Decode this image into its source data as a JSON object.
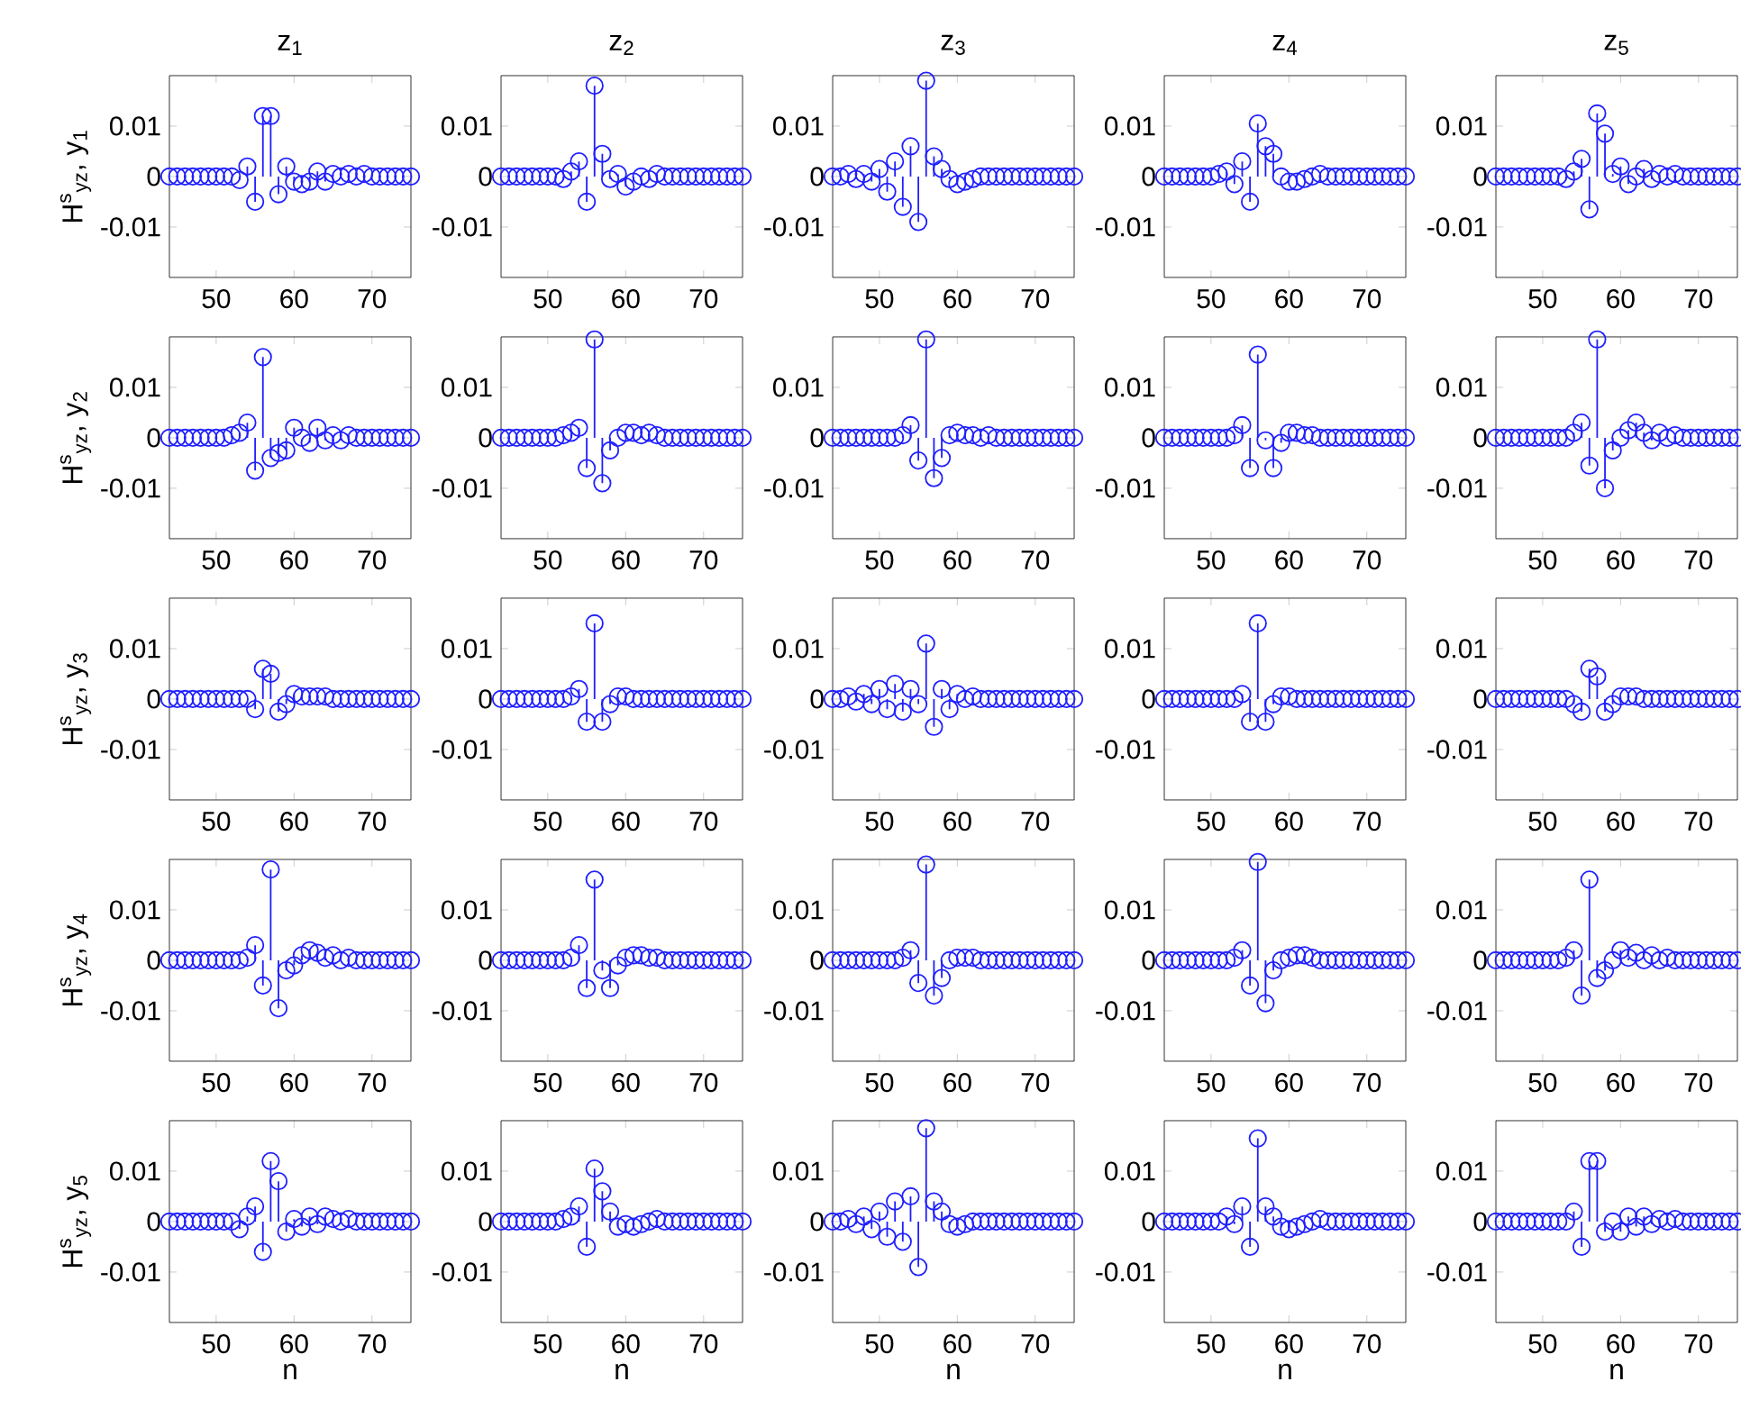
{
  "chart_data": [
    {
      "type": "lollipop",
      "title": "z$_{1}$",
      "ylabel": "H$^{s}$$_{yz}$, y$_{1}$",
      "color": "#1f1fff",
      "marker": "circle",
      "xlim": [
        44,
        75
      ],
      "ylim": [
        -0.02,
        0.02
      ],
      "xticks": [
        50,
        60,
        70
      ],
      "yticks": [
        -0.01,
        0,
        0.01
      ],
      "x": [
        44,
        45,
        46,
        47,
        48,
        49,
        50,
        51,
        52,
        53,
        54,
        55,
        56,
        57,
        58,
        59,
        60,
        61,
        62,
        63,
        64,
        65,
        66,
        67,
        68,
        69,
        70,
        71,
        72,
        73,
        74,
        75
      ],
      "values": [
        0,
        0,
        0,
        0,
        0,
        0,
        0,
        0,
        0,
        -0.0007,
        0.002,
        -0.005,
        0.012,
        0.012,
        -0.0035,
        0.002,
        -0.001,
        -0.0015,
        -0.001,
        0.001,
        -0.001,
        0.0005,
        0,
        0.0005,
        0,
        0.0005,
        0,
        0,
        0,
        0,
        0,
        0
      ]
    },
    {
      "type": "lollipop",
      "title": "z$_{2}$",
      "color": "#1f1fff",
      "marker": "circle",
      "xlim": [
        44,
        75
      ],
      "ylim": [
        -0.02,
        0.02
      ],
      "xticks": [
        50,
        60,
        70
      ],
      "yticks": [
        -0.01,
        0,
        0.01
      ],
      "x": [
        44,
        45,
        46,
        47,
        48,
        49,
        50,
        51,
        52,
        53,
        54,
        55,
        56,
        57,
        58,
        59,
        60,
        61,
        62,
        63,
        64,
        65,
        66,
        67,
        68,
        69,
        70,
        71,
        72,
        73,
        74,
        75
      ],
      "values": [
        0,
        0,
        0,
        0,
        0,
        0,
        0,
        0,
        -0.0005,
        0.001,
        0.003,
        -0.005,
        0.018,
        0.0045,
        -0.0005,
        0.0005,
        -0.002,
        -0.001,
        0,
        -0.0005,
        0.0005,
        0,
        0,
        0,
        0,
        0,
        0,
        0,
        0,
        0,
        0,
        0
      ]
    },
    {
      "type": "lollipop",
      "title": "z$_{3}$",
      "color": "#1f1fff",
      "marker": "circle",
      "xlim": [
        44,
        75
      ],
      "ylim": [
        -0.02,
        0.02
      ],
      "xticks": [
        50,
        60,
        70
      ],
      "yticks": [
        -0.01,
        0,
        0.01
      ],
      "x": [
        44,
        45,
        46,
        47,
        48,
        49,
        50,
        51,
        52,
        53,
        54,
        55,
        56,
        57,
        58,
        59,
        60,
        61,
        62,
        63,
        64,
        65,
        66,
        67,
        68,
        69,
        70,
        71,
        72,
        73,
        74,
        75
      ],
      "values": [
        0,
        0,
        0.0005,
        -0.0005,
        0.0005,
        -0.001,
        0.0015,
        -0.003,
        0.003,
        -0.006,
        0.006,
        -0.009,
        0.019,
        0.004,
        0.0015,
        -0.0005,
        -0.0015,
        -0.001,
        -0.0005,
        0,
        0,
        0,
        0,
        0,
        0,
        0,
        0,
        0,
        0,
        0,
        0,
        0
      ]
    },
    {
      "type": "lollipop",
      "title": "z$_{4}$",
      "color": "#1f1fff",
      "marker": "circle",
      "xlim": [
        44,
        75
      ],
      "ylim": [
        -0.02,
        0.02
      ],
      "xticks": [
        50,
        60,
        70
      ],
      "yticks": [
        -0.01,
        0,
        0.01
      ],
      "x": [
        44,
        45,
        46,
        47,
        48,
        49,
        50,
        51,
        52,
        53,
        54,
        55,
        56,
        57,
        58,
        59,
        60,
        61,
        62,
        63,
        64,
        65,
        66,
        67,
        68,
        69,
        70,
        71,
        72,
        73,
        74,
        75
      ],
      "values": [
        0,
        0,
        0,
        0,
        0,
        0,
        0,
        0.0005,
        0.001,
        -0.0015,
        0.003,
        -0.005,
        0.0105,
        0.006,
        0.0045,
        0,
        -0.001,
        -0.001,
        -0.0005,
        0,
        0.0005,
        0,
        0,
        0,
        0,
        0,
        0,
        0,
        0,
        0,
        0,
        0
      ]
    },
    {
      "type": "lollipop",
      "title": "z$_{5}$",
      "color": "#1f1fff",
      "marker": "circle",
      "xlim": [
        44,
        75
      ],
      "ylim": [
        -0.02,
        0.02
      ],
      "xticks": [
        50,
        60,
        70
      ],
      "yticks": [
        -0.01,
        0,
        0.01
      ],
      "x": [
        44,
        45,
        46,
        47,
        48,
        49,
        50,
        51,
        52,
        53,
        54,
        55,
        56,
        57,
        58,
        59,
        60,
        61,
        62,
        63,
        64,
        65,
        66,
        67,
        68,
        69,
        70,
        71,
        72,
        73,
        74,
        75
      ],
      "values": [
        0,
        0,
        0,
        0,
        0,
        0,
        0,
        0,
        0,
        -0.0005,
        0.001,
        0.0035,
        -0.0065,
        0.0125,
        0.0085,
        0.0005,
        0.002,
        -0.0015,
        0,
        0.0015,
        -0.0005,
        0.0005,
        0,
        0.0005,
        0,
        0,
        0,
        0,
        0,
        0,
        0,
        0
      ]
    },
    {
      "type": "lollipop",
      "ylabel": "H$^{s}$$_{yz}$, y$_{2}$",
      "color": "#1f1fff",
      "marker": "circle",
      "xlim": [
        44,
        75
      ],
      "ylim": [
        -0.02,
        0.02
      ],
      "xticks": [
        50,
        60,
        70
      ],
      "yticks": [
        -0.01,
        0,
        0.01
      ],
      "x": [
        44,
        45,
        46,
        47,
        48,
        49,
        50,
        51,
        52,
        53,
        54,
        55,
        56,
        57,
        58,
        59,
        60,
        61,
        62,
        63,
        64,
        65,
        66,
        67,
        68,
        69,
        70,
        71,
        72,
        73,
        74,
        75
      ],
      "values": [
        0,
        0,
        0,
        0,
        0,
        0,
        0,
        0,
        0.0005,
        0.001,
        0.003,
        -0.0065,
        0.016,
        -0.004,
        -0.003,
        -0.0025,
        0.002,
        0,
        -0.001,
        0.002,
        -0.0005,
        0.0005,
        -0.0005,
        0.0005,
        0,
        0,
        0,
        0,
        0,
        0,
        0,
        0
      ]
    },
    {
      "type": "lollipop",
      "color": "#1f1fff",
      "marker": "circle",
      "xlim": [
        44,
        75
      ],
      "ylim": [
        -0.02,
        0.02
      ],
      "xticks": [
        50,
        60,
        70
      ],
      "yticks": [
        -0.01,
        0,
        0.01
      ],
      "x": [
        44,
        45,
        46,
        47,
        48,
        49,
        50,
        51,
        52,
        53,
        54,
        55,
        56,
        57,
        58,
        59,
        60,
        61,
        62,
        63,
        64,
        65,
        66,
        67,
        68,
        69,
        70,
        71,
        72,
        73,
        74,
        75
      ],
      "values": [
        0,
        0,
        0,
        0,
        0,
        0,
        0,
        0,
        0.0005,
        0.001,
        0.002,
        -0.006,
        0.0195,
        -0.009,
        -0.0025,
        0,
        0.001,
        0.001,
        0.0005,
        0.001,
        0.0005,
        0,
        0,
        0,
        0,
        0,
        0,
        0,
        0,
        0,
        0,
        0
      ]
    },
    {
      "type": "lollipop",
      "color": "#1f1fff",
      "marker": "circle",
      "xlim": [
        44,
        75
      ],
      "ylim": [
        -0.02,
        0.02
      ],
      "xticks": [
        50,
        60,
        70
      ],
      "yticks": [
        -0.01,
        0,
        0.01
      ],
      "x": [
        44,
        45,
        46,
        47,
        48,
        49,
        50,
        51,
        52,
        53,
        54,
        55,
        56,
        57,
        58,
        59,
        60,
        61,
        62,
        63,
        64,
        65,
        66,
        67,
        68,
        69,
        70,
        71,
        72,
        73,
        74,
        75
      ],
      "values": [
        0,
        0,
        0,
        0,
        0,
        0,
        0,
        0,
        0,
        0.0005,
        0.0025,
        -0.0045,
        0.0195,
        -0.008,
        -0.004,
        0.0005,
        0.001,
        0.0005,
        0.0005,
        0,
        0.0005,
        0,
        0,
        0,
        0,
        0,
        0,
        0,
        0,
        0,
        0,
        0
      ]
    },
    {
      "type": "lollipop",
      "color": "#1f1fff",
      "marker": "circle",
      "xlim": [
        44,
        75
      ],
      "ylim": [
        -0.02,
        0.02
      ],
      "xticks": [
        50,
        60,
        70
      ],
      "yticks": [
        -0.01,
        0,
        0.01
      ],
      "x": [
        44,
        45,
        46,
        47,
        48,
        49,
        50,
        51,
        52,
        53,
        54,
        55,
        56,
        57,
        58,
        59,
        60,
        61,
        62,
        63,
        64,
        65,
        66,
        67,
        68,
        69,
        70,
        71,
        72,
        73,
        74,
        75
      ],
      "values": [
        0,
        0,
        0,
        0,
        0,
        0,
        0,
        0,
        0,
        0.0005,
        0.0025,
        -0.006,
        0.0165,
        -0.0005,
        -0.006,
        -0.001,
        0.001,
        0.001,
        0.0005,
        0.0005,
        0,
        0,
        0,
        0,
        0,
        0,
        0,
        0,
        0,
        0,
        0,
        0
      ]
    },
    {
      "type": "lollipop",
      "color": "#1f1fff",
      "marker": "circle",
      "xlim": [
        44,
        75
      ],
      "ylim": [
        -0.02,
        0.02
      ],
      "xticks": [
        50,
        60,
        70
      ],
      "yticks": [
        -0.01,
        0,
        0.01
      ],
      "x": [
        44,
        45,
        46,
        47,
        48,
        49,
        50,
        51,
        52,
        53,
        54,
        55,
        56,
        57,
        58,
        59,
        60,
        61,
        62,
        63,
        64,
        65,
        66,
        67,
        68,
        69,
        70,
        71,
        72,
        73,
        74,
        75
      ],
      "values": [
        0,
        0,
        0,
        0,
        0,
        0,
        0,
        0,
        0,
        0,
        0.001,
        0.003,
        -0.0055,
        0.0195,
        -0.01,
        -0.0025,
        0,
        0.0015,
        0.003,
        0.001,
        -0.0005,
        0.001,
        0,
        0.0005,
        0,
        0,
        0,
        0,
        0,
        0,
        0,
        0
      ]
    },
    {
      "type": "lollipop",
      "ylabel": "H$^{s}$$_{yz}$, y$_{3}$",
      "color": "#1f1fff",
      "marker": "circle",
      "xlim": [
        44,
        75
      ],
      "ylim": [
        -0.02,
        0.02
      ],
      "xticks": [
        50,
        60,
        70
      ],
      "yticks": [
        -0.01,
        0,
        0.01
      ],
      "x": [
        44,
        45,
        46,
        47,
        48,
        49,
        50,
        51,
        52,
        53,
        54,
        55,
        56,
        57,
        58,
        59,
        60,
        61,
        62,
        63,
        64,
        65,
        66,
        67,
        68,
        69,
        70,
        71,
        72,
        73,
        74,
        75
      ],
      "values": [
        0,
        0,
        0,
        0,
        0,
        0,
        0,
        0,
        0,
        0,
        0,
        -0.002,
        0.006,
        0.005,
        -0.0025,
        -0.001,
        0.001,
        0.0005,
        0.0005,
        0.0005,
        0.0005,
        0,
        0,
        0,
        0,
        0,
        0,
        0,
        0,
        0,
        0,
        0
      ]
    },
    {
      "type": "lollipop",
      "color": "#1f1fff",
      "marker": "circle",
      "xlim": [
        44,
        75
      ],
      "ylim": [
        -0.02,
        0.02
      ],
      "xticks": [
        50,
        60,
        70
      ],
      "yticks": [
        -0.01,
        0,
        0.01
      ],
      "x": [
        44,
        45,
        46,
        47,
        48,
        49,
        50,
        51,
        52,
        53,
        54,
        55,
        56,
        57,
        58,
        59,
        60,
        61,
        62,
        63,
        64,
        65,
        66,
        67,
        68,
        69,
        70,
        71,
        72,
        73,
        74,
        75
      ],
      "values": [
        0,
        0,
        0,
        0,
        0,
        0,
        0,
        0,
        0,
        0.0005,
        0.002,
        -0.0045,
        0.015,
        -0.0045,
        -0.001,
        0.0005,
        0.0005,
        0,
        0,
        0,
        0,
        0,
        0,
        0,
        0,
        0,
        0,
        0,
        0,
        0,
        0,
        0
      ]
    },
    {
      "type": "lollipop",
      "color": "#1f1fff",
      "marker": "circle",
      "xlim": [
        44,
        75
      ],
      "ylim": [
        -0.02,
        0.02
      ],
      "xticks": [
        50,
        60,
        70
      ],
      "yticks": [
        -0.01,
        0,
        0.01
      ],
      "x": [
        44,
        45,
        46,
        47,
        48,
        49,
        50,
        51,
        52,
        53,
        54,
        55,
        56,
        57,
        58,
        59,
        60,
        61,
        62,
        63,
        64,
        65,
        66,
        67,
        68,
        69,
        70,
        71,
        72,
        73,
        74,
        75
      ],
      "values": [
        0,
        0,
        0.0005,
        -0.0005,
        0.001,
        -0.001,
        0.002,
        -0.002,
        0.003,
        -0.0025,
        0.002,
        -0.001,
        0.011,
        -0.0055,
        0.002,
        -0.002,
        0.001,
        0,
        0.0005,
        0,
        0,
        0,
        0,
        0,
        0,
        0,
        0,
        0,
        0,
        0,
        0,
        0
      ]
    },
    {
      "type": "lollipop",
      "color": "#1f1fff",
      "marker": "circle",
      "xlim": [
        44,
        75
      ],
      "ylim": [
        -0.02,
        0.02
      ],
      "xticks": [
        50,
        60,
        70
      ],
      "yticks": [
        -0.01,
        0,
        0.01
      ],
      "x": [
        44,
        45,
        46,
        47,
        48,
        49,
        50,
        51,
        52,
        53,
        54,
        55,
        56,
        57,
        58,
        59,
        60,
        61,
        62,
        63,
        64,
        65,
        66,
        67,
        68,
        69,
        70,
        71,
        72,
        73,
        74,
        75
      ],
      "values": [
        0,
        0,
        0,
        0,
        0,
        0,
        0,
        0,
        0,
        0,
        0.001,
        -0.0045,
        0.015,
        -0.0045,
        -0.001,
        0.0005,
        0.0005,
        0,
        0,
        0,
        0,
        0,
        0,
        0,
        0,
        0,
        0,
        0,
        0,
        0,
        0,
        0
      ]
    },
    {
      "type": "lollipop",
      "color": "#1f1fff",
      "marker": "circle",
      "xlim": [
        44,
        75
      ],
      "ylim": [
        -0.02,
        0.02
      ],
      "xticks": [
        50,
        60,
        70
      ],
      "yticks": [
        -0.01,
        0,
        0.01
      ],
      "x": [
        44,
        45,
        46,
        47,
        48,
        49,
        50,
        51,
        52,
        53,
        54,
        55,
        56,
        57,
        58,
        59,
        60,
        61,
        62,
        63,
        64,
        65,
        66,
        67,
        68,
        69,
        70,
        71,
        72,
        73,
        74,
        75
      ],
      "values": [
        0,
        0,
        0,
        0,
        0,
        0,
        0,
        0,
        0,
        0,
        -0.001,
        -0.0025,
        0.006,
        0.0045,
        -0.0025,
        -0.001,
        0.0005,
        0.0005,
        0.0005,
        0,
        0,
        0,
        0,
        0,
        0,
        0,
        0,
        0,
        0,
        0,
        0,
        0
      ]
    },
    {
      "type": "lollipop",
      "ylabel": "H$^{s}$$_{yz}$, y$_{4}$",
      "color": "#1f1fff",
      "marker": "circle",
      "xlim": [
        44,
        75
      ],
      "ylim": [
        -0.02,
        0.02
      ],
      "xticks": [
        50,
        60,
        70
      ],
      "yticks": [
        -0.01,
        0,
        0.01
      ],
      "x": [
        44,
        45,
        46,
        47,
        48,
        49,
        50,
        51,
        52,
        53,
        54,
        55,
        56,
        57,
        58,
        59,
        60,
        61,
        62,
        63,
        64,
        65,
        66,
        67,
        68,
        69,
        70,
        71,
        72,
        73,
        74,
        75
      ],
      "values": [
        0,
        0,
        0,
        0,
        0,
        0,
        0,
        0,
        0,
        0,
        0.0005,
        0.003,
        -0.005,
        0.018,
        -0.0095,
        -0.002,
        -0.001,
        0.001,
        0.002,
        0.0015,
        0.0005,
        0.001,
        0,
        0.0005,
        0,
        0,
        0,
        0,
        0,
        0,
        0,
        0
      ]
    },
    {
      "type": "lollipop",
      "color": "#1f1fff",
      "marker": "circle",
      "xlim": [
        44,
        75
      ],
      "ylim": [
        -0.02,
        0.02
      ],
      "xticks": [
        50,
        60,
        70
      ],
      "yticks": [
        -0.01,
        0,
        0.01
      ],
      "x": [
        44,
        45,
        46,
        47,
        48,
        49,
        50,
        51,
        52,
        53,
        54,
        55,
        56,
        57,
        58,
        59,
        60,
        61,
        62,
        63,
        64,
        65,
        66,
        67,
        68,
        69,
        70,
        71,
        72,
        73,
        74,
        75
      ],
      "values": [
        0,
        0,
        0,
        0,
        0,
        0,
        0,
        0,
        0,
        0.0005,
        0.003,
        -0.0055,
        0.016,
        -0.002,
        -0.0055,
        -0.001,
        0.0005,
        0.001,
        0.001,
        0.0005,
        0.0005,
        0,
        0,
        0,
        0,
        0,
        0,
        0,
        0,
        0,
        0,
        0
      ]
    },
    {
      "type": "lollipop",
      "color": "#1f1fff",
      "marker": "circle",
      "xlim": [
        44,
        75
      ],
      "ylim": [
        -0.02,
        0.02
      ],
      "xticks": [
        50,
        60,
        70
      ],
      "yticks": [
        -0.01,
        0,
        0.01
      ],
      "x": [
        44,
        45,
        46,
        47,
        48,
        49,
        50,
        51,
        52,
        53,
        54,
        55,
        56,
        57,
        58,
        59,
        60,
        61,
        62,
        63,
        64,
        65,
        66,
        67,
        68,
        69,
        70,
        71,
        72,
        73,
        74,
        75
      ],
      "values": [
        0,
        0,
        0,
        0,
        0,
        0,
        0,
        0,
        0,
        0.0005,
        0.002,
        -0.0045,
        0.019,
        -0.007,
        -0.0035,
        0,
        0.0005,
        0.0005,
        0.0005,
        0,
        0,
        0,
        0,
        0,
        0,
        0,
        0,
        0,
        0,
        0,
        0,
        0
      ]
    },
    {
      "type": "lollipop",
      "color": "#1f1fff",
      "marker": "circle",
      "xlim": [
        44,
        75
      ],
      "ylim": [
        -0.02,
        0.02
      ],
      "xticks": [
        50,
        60,
        70
      ],
      "yticks": [
        -0.01,
        0,
        0.01
      ],
      "x": [
        44,
        45,
        46,
        47,
        48,
        49,
        50,
        51,
        52,
        53,
        54,
        55,
        56,
        57,
        58,
        59,
        60,
        61,
        62,
        63,
        64,
        65,
        66,
        67,
        68,
        69,
        70,
        71,
        72,
        73,
        74,
        75
      ],
      "values": [
        0,
        0,
        0,
        0,
        0,
        0,
        0,
        0,
        0,
        0.0005,
        0.002,
        -0.005,
        0.0195,
        -0.0085,
        -0.002,
        0,
        0.0005,
        0.001,
        0.001,
        0.0005,
        0,
        0,
        0,
        0,
        0,
        0,
        0,
        0,
        0,
        0,
        0,
        0
      ]
    },
    {
      "type": "lollipop",
      "color": "#1f1fff",
      "marker": "circle",
      "xlim": [
        44,
        75
      ],
      "ylim": [
        -0.02,
        0.02
      ],
      "xticks": [
        50,
        60,
        70
      ],
      "yticks": [
        -0.01,
        0,
        0.01
      ],
      "x": [
        44,
        45,
        46,
        47,
        48,
        49,
        50,
        51,
        52,
        53,
        54,
        55,
        56,
        57,
        58,
        59,
        60,
        61,
        62,
        63,
        64,
        65,
        66,
        67,
        68,
        69,
        70,
        71,
        72,
        73,
        74,
        75
      ],
      "values": [
        0,
        0,
        0,
        0,
        0,
        0,
        0,
        0,
        0,
        0.0005,
        0.002,
        -0.007,
        0.016,
        -0.0035,
        -0.002,
        0,
        0.002,
        0.0005,
        0.0015,
        0,
        0.001,
        0,
        0.0005,
        0,
        0,
        0,
        0,
        0,
        0,
        0,
        0,
        0
      ]
    },
    {
      "type": "lollipop",
      "xlabel": "n",
      "ylabel": "H$^{s}$$_{yz}$, y$_{5}$",
      "color": "#1f1fff",
      "marker": "circle",
      "xlim": [
        44,
        75
      ],
      "ylim": [
        -0.02,
        0.02
      ],
      "xticks": [
        50,
        60,
        70
      ],
      "yticks": [
        -0.01,
        0,
        0.01
      ],
      "x": [
        44,
        45,
        46,
        47,
        48,
        49,
        50,
        51,
        52,
        53,
        54,
        55,
        56,
        57,
        58,
        59,
        60,
        61,
        62,
        63,
        64,
        65,
        66,
        67,
        68,
        69,
        70,
        71,
        72,
        73,
        74,
        75
      ],
      "values": [
        0,
        0,
        0,
        0,
        0,
        0,
        0,
        0,
        0,
        -0.0015,
        0.001,
        0.003,
        -0.006,
        0.012,
        0.008,
        -0.002,
        0.0005,
        -0.001,
        0.001,
        -0.0005,
        0.001,
        0.0005,
        0,
        0.0005,
        0,
        0,
        0,
        0,
        0,
        0,
        0,
        0
      ]
    },
    {
      "type": "lollipop",
      "xlabel": "n",
      "color": "#1f1fff",
      "marker": "circle",
      "xlim": [
        44,
        75
      ],
      "ylim": [
        -0.02,
        0.02
      ],
      "xticks": [
        50,
        60,
        70
      ],
      "yticks": [
        -0.01,
        0,
        0.01
      ],
      "x": [
        44,
        45,
        46,
        47,
        48,
        49,
        50,
        51,
        52,
        53,
        54,
        55,
        56,
        57,
        58,
        59,
        60,
        61,
        62,
        63,
        64,
        65,
        66,
        67,
        68,
        69,
        70,
        71,
        72,
        73,
        74,
        75
      ],
      "values": [
        0,
        0,
        0,
        0,
        0,
        0,
        0,
        0,
        0.0005,
        0.001,
        0.003,
        -0.005,
        0.0105,
        0.006,
        0.002,
        -0.001,
        -0.0005,
        -0.001,
        -0.0005,
        0,
        0.0005,
        0,
        0,
        0,
        0,
        0,
        0,
        0,
        0,
        0,
        0,
        0
      ]
    },
    {
      "type": "lollipop",
      "xlabel": "n",
      "color": "#1f1fff",
      "marker": "circle",
      "xlim": [
        44,
        75
      ],
      "ylim": [
        -0.02,
        0.02
      ],
      "xticks": [
        50,
        60,
        70
      ],
      "yticks": [
        -0.01,
        0,
        0.01
      ],
      "x": [
        44,
        45,
        46,
        47,
        48,
        49,
        50,
        51,
        52,
        53,
        54,
        55,
        56,
        57,
        58,
        59,
        60,
        61,
        62,
        63,
        64,
        65,
        66,
        67,
        68,
        69,
        70,
        71,
        72,
        73,
        74,
        75
      ],
      "values": [
        0,
        0,
        0.0005,
        -0.0005,
        0.001,
        -0.0015,
        0.002,
        -0.003,
        0.004,
        -0.004,
        0.005,
        -0.009,
        0.0185,
        0.004,
        0.002,
        -0.0005,
        -0.001,
        -0.0005,
        0,
        0,
        0,
        0,
        0,
        0,
        0,
        0,
        0,
        0,
        0,
        0,
        0,
        0
      ]
    },
    {
      "type": "lollipop",
      "xlabel": "n",
      "color": "#1f1fff",
      "marker": "circle",
      "xlim": [
        44,
        75
      ],
      "ylim": [
        -0.02,
        0.02
      ],
      "xticks": [
        50,
        60,
        70
      ],
      "yticks": [
        -0.01,
        0,
        0.01
      ],
      "x": [
        44,
        45,
        46,
        47,
        48,
        49,
        50,
        51,
        52,
        53,
        54,
        55,
        56,
        57,
        58,
        59,
        60,
        61,
        62,
        63,
        64,
        65,
        66,
        67,
        68,
        69,
        70,
        71,
        72,
        73,
        74,
        75
      ],
      "values": [
        0,
        0,
        0,
        0,
        0,
        0,
        0,
        0,
        0.001,
        -0.0005,
        0.003,
        -0.005,
        0.0165,
        0.003,
        0.001,
        -0.001,
        -0.0015,
        -0.001,
        -0.0005,
        0,
        0.0005,
        0,
        0,
        0,
        0,
        0,
        0,
        0,
        0,
        0,
        0,
        0
      ]
    },
    {
      "type": "lollipop",
      "xlabel": "n",
      "color": "#1f1fff",
      "marker": "circle",
      "xlim": [
        44,
        75
      ],
      "ylim": [
        -0.02,
        0.02
      ],
      "xticks": [
        50,
        60,
        70
      ],
      "yticks": [
        -0.01,
        0,
        0.01
      ],
      "x": [
        44,
        45,
        46,
        47,
        48,
        49,
        50,
        51,
        52,
        53,
        54,
        55,
        56,
        57,
        58,
        59,
        60,
        61,
        62,
        63,
        64,
        65,
        66,
        67,
        68,
        69,
        70,
        71,
        72,
        73,
        74,
        75
      ],
      "values": [
        0,
        0,
        0,
        0,
        0,
        0,
        0,
        0,
        0,
        0,
        0.002,
        -0.005,
        0.012,
        0.012,
        -0.002,
        0,
        -0.002,
        0.001,
        -0.001,
        0.001,
        -0.0005,
        0.0005,
        0,
        0.0005,
        0,
        0,
        0,
        0,
        0,
        0,
        0,
        0
      ]
    }
  ]
}
